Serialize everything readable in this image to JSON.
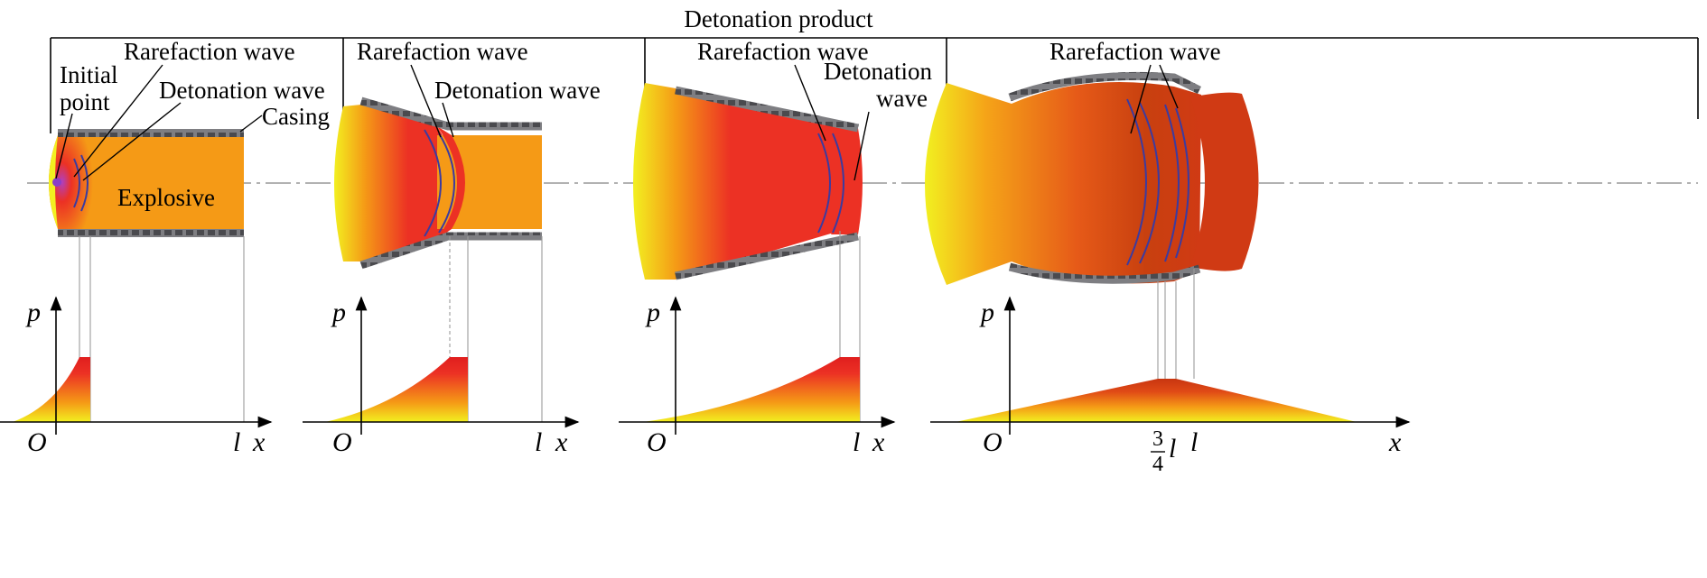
{
  "title": "Detonation product",
  "labels": {
    "initial_point_line1": "Initial",
    "initial_point_line2": "point",
    "rarefaction_wave": "Rarefaction wave",
    "detonation_wave": "Detonation wave",
    "detonation_wave_line1": "Detonation",
    "detonation_wave_line2": "wave",
    "casing": "Casing",
    "explosive": "Explosive"
  },
  "axes": {
    "p": "p",
    "x": "x",
    "origin": "O",
    "l": "l",
    "frac_num": "3",
    "frac_den": "4"
  },
  "colors": {
    "yellow": "#f2f020",
    "orange": "#f59a16",
    "red": "#ec3124",
    "dark_red": "#c83510",
    "wave_line": "#3b3ba0",
    "casing": "#7e7e82"
  }
}
